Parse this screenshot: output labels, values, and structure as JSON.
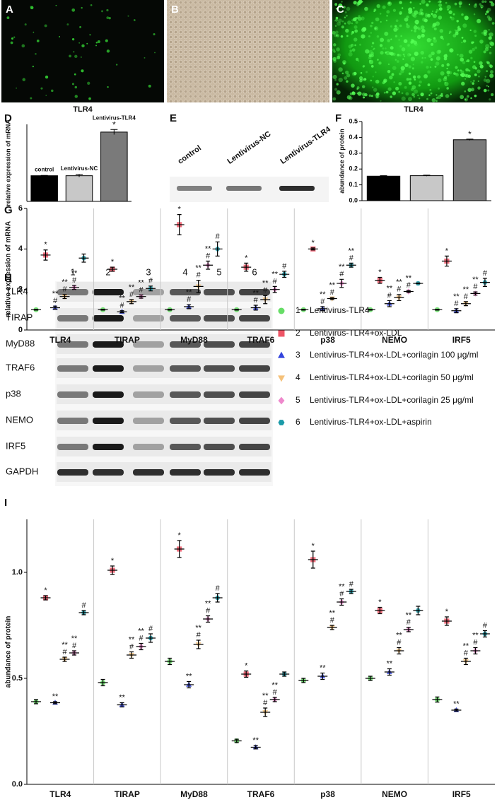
{
  "panels": {
    "letters": [
      "A",
      "B",
      "C",
      "D",
      "E",
      "F",
      "G",
      "H",
      "I"
    ],
    "image_captions": [
      "TLR4",
      "TLR4"
    ],
    "e_lanes": [
      "control",
      "Lentivirus-NC",
      "Lentivirus-TLR4"
    ],
    "h_lanes": [
      "1",
      "2",
      "3",
      "4",
      "5",
      "6"
    ],
    "h_rows": [
      "TLR4",
      "TIRAP",
      "MyD88",
      "TRAF6",
      "p38",
      "NEMO",
      "IRF5",
      "GAPDH"
    ]
  },
  "chart_data": [
    {
      "type": "bar",
      "y_label": "relative expression of mRNA",
      "categories": [
        "control",
        "Lentivirus-NC",
        "Lentivirus-TLR4"
      ],
      "values": [
        1.0,
        1.0,
        2.7
      ],
      "errors": [
        0.01,
        0.05,
        0.1
      ],
      "colors": [
        "#000000",
        "#c8c8c8",
        "#7a7a7a"
      ],
      "ylim": [
        0,
        3
      ],
      "annotations": [
        {
          "index": 2,
          "text": "*"
        }
      ]
    },
    {
      "type": "bar",
      "y_label": "abundance of protein",
      "categories": [
        null,
        null,
        null
      ],
      "values": [
        0.155,
        0.158,
        0.385
      ],
      "errors": [
        0.003,
        0.003,
        0.004
      ],
      "colors": [
        "#000000",
        "#c8c8c8",
        "#7a7a7a"
      ],
      "ylim": [
        0,
        0.5
      ],
      "yticks": [
        {
          "value": 0,
          "label": "0.0"
        },
        0.1,
        0.2,
        0.3,
        0.4,
        0.5
      ],
      "annotations": [
        {
          "index": 2,
          "text": "*"
        }
      ]
    },
    {
      "type": "dot",
      "y_label": "relative expression of mRNA",
      "categories": [
        "TLR4",
        "TIRAP",
        "MyD88",
        "TRAF6",
        "p38",
        "NEMO",
        "IRF5"
      ],
      "ylim": [
        0,
        6
      ],
      "yticks": [
        0,
        2,
        4,
        6
      ],
      "series": [
        {
          "number": "1",
          "name": "Lentivirus-TLR4",
          "color": "#66dd66",
          "marker": "circle",
          "values": [
            1,
            1,
            1,
            1,
            1,
            1,
            1
          ],
          "errors": [
            0.02,
            0.02,
            0.02,
            0.02,
            0.02,
            0.02,
            0.02
          ],
          "labels": [
            [],
            [],
            [],
            [],
            [],
            [],
            []
          ]
        },
        {
          "number": "2",
          "name": "Lentivirus-TLR4+ox-LDL",
          "color": "#ee5566",
          "marker": "square",
          "values": [
            3.7,
            3.0,
            5.2,
            3.1,
            4.0,
            2.45,
            3.4
          ],
          "errors": [
            0.25,
            0.1,
            0.5,
            0.2,
            0.05,
            0.15,
            0.25
          ],
          "labels": [
            [
              "*"
            ],
            [
              "*"
            ],
            [
              "*"
            ],
            [
              "*"
            ],
            [
              "*"
            ],
            [
              "*"
            ],
            [
              "*"
            ]
          ]
        },
        {
          "number": "3",
          "name": "Lentivirus-TLR4+ox-LDL+corilagin 100 μg/ml",
          "color": "#3344dd",
          "marker": "triangle",
          "values": [
            1.1,
            0.9,
            1.15,
            1.1,
            1.05,
            1.3,
            0.95
          ],
          "errors": [
            0.08,
            0.05,
            0.1,
            0.12,
            0.1,
            0.15,
            0.1
          ],
          "labels": [
            [
              "**",
              "#"
            ],
            [
              "**",
              "#"
            ],
            [
              "**",
              "#"
            ],
            [
              "**",
              "#"
            ],
            [
              "**",
              "#"
            ],
            [
              "**",
              "#"
            ],
            [
              "**",
              "#"
            ]
          ]
        },
        {
          "number": "4",
          "name": "Lentivirus-TLR4+ox-LDL+corilagin 50 μg/ml",
          "color": "#f5c17a",
          "marker": "triangle-down",
          "values": [
            1.65,
            1.4,
            2.15,
            1.5,
            1.55,
            1.6,
            1.3
          ],
          "errors": [
            0.1,
            0.1,
            0.3,
            0.2,
            0.05,
            0.15,
            0.1
          ],
          "labels": [
            [
              "**",
              "#"
            ],
            [
              "**",
              "#"
            ],
            [
              "**",
              "#"
            ],
            [
              "**",
              "#"
            ],
            [
              "**",
              "#"
            ],
            [
              "**",
              "#"
            ],
            [
              "**",
              "#"
            ]
          ]
        },
        {
          "number": "5",
          "name": "Lentivirus-TLR4+ox-LDL+corilagin 25 μg/ml",
          "color": "#ee88cc",
          "marker": "diamond",
          "values": [
            2.1,
            1.65,
            3.2,
            2.0,
            2.3,
            1.9,
            1.8
          ],
          "errors": [
            0.1,
            0.08,
            0.2,
            0.15,
            0.2,
            0.05,
            0.08
          ],
          "labels": [
            [
              "**",
              "#"
            ],
            [
              "**",
              "#"
            ],
            [
              "**",
              "#"
            ],
            [
              "**",
              "#"
            ],
            [
              "**",
              "#"
            ],
            [
              "**",
              "#"
            ],
            [
              "**",
              "#"
            ]
          ]
        },
        {
          "number": "6",
          "name": "Lentivirus-TLR4+ox-LDL+aspirin",
          "color": "#1a9aa8",
          "marker": "hexagon",
          "values": [
            3.55,
            2.05,
            4.0,
            2.75,
            3.2,
            2.3,
            2.35
          ],
          "errors": [
            0.2,
            0.12,
            0.35,
            0.15,
            0.1,
            0.02,
            0.2
          ],
          "labels": [
            [],
            [
              "#"
            ],
            [
              "#"
            ],
            [
              "#"
            ],
            [
              "**",
              "#"
            ],
            [],
            [
              "#"
            ]
          ]
        }
      ]
    },
    {
      "type": "dot",
      "y_label": "abundance of protein",
      "categories": [
        "TLR4",
        "TIRAP",
        "MyD88",
        "TRAF6",
        "p38",
        "NEMO",
        "IRF5"
      ],
      "ylim": [
        0,
        1.25
      ],
      "yticks": [
        {
          "value": 0,
          "label": "0.0"
        },
        0.5,
        {
          "value": 1,
          "label": "1.0"
        }
      ],
      "series": [
        {
          "number": "1",
          "name": "Lentivirus-TLR4",
          "color": "#66dd66",
          "marker": "circle",
          "values": [
            0.39,
            0.48,
            0.58,
            0.205,
            0.49,
            0.5,
            0.4
          ],
          "errors": [
            0.01,
            0.015,
            0.015,
            0.008,
            0.01,
            0.01,
            0.012
          ],
          "labels": [
            [],
            [],
            [],
            [],
            [],
            [],
            []
          ]
        },
        {
          "number": "2",
          "name": "Lentivirus-TLR4+ox-LDL",
          "color": "#ee5566",
          "marker": "square",
          "values": [
            0.88,
            1.01,
            1.11,
            0.52,
            1.06,
            0.82,
            0.77
          ],
          "errors": [
            0.01,
            0.02,
            0.04,
            0.015,
            0.04,
            0.015,
            0.02
          ],
          "labels": [
            [
              "*"
            ],
            [
              "*"
            ],
            [
              "*"
            ],
            [
              "*"
            ],
            [
              "*"
            ],
            [
              "*"
            ],
            [
              "*"
            ]
          ]
        },
        {
          "number": "3",
          "name": "Lentivirus-TLR4+ox-LDL+corilagin 100 μg/ml",
          "color": "#3344dd",
          "marker": "triangle",
          "values": [
            0.385,
            0.375,
            0.47,
            0.175,
            0.51,
            0.53,
            0.35
          ],
          "errors": [
            0.005,
            0.01,
            0.015,
            0.008,
            0.015,
            0.015,
            0.005
          ],
          "labels": [
            [
              "**"
            ],
            [
              "**"
            ],
            [
              "**"
            ],
            [
              "**"
            ],
            [
              "**"
            ],
            [
              "**"
            ],
            [
              "**"
            ]
          ]
        },
        {
          "number": "4",
          "name": "Lentivirus-TLR4+ox-LDL+corilagin 50 μg/ml",
          "color": "#f5c17a",
          "marker": "triangle-down",
          "values": [
            0.59,
            0.61,
            0.66,
            0.34,
            0.74,
            0.63,
            0.58
          ],
          "errors": [
            0.01,
            0.015,
            0.02,
            0.02,
            0.01,
            0.015,
            0.015
          ],
          "labels": [
            [
              "**",
              "#"
            ],
            [
              "**",
              "#"
            ],
            [
              "**",
              "#"
            ],
            [
              "**",
              "#"
            ],
            [
              "**",
              "#"
            ],
            [
              "**",
              "#"
            ],
            [
              "**",
              "#"
            ]
          ]
        },
        {
          "number": "5",
          "name": "Lentivirus-TLR4+ox-LDL+corilagin 25 μg/ml",
          "color": "#ee88cc",
          "marker": "diamond",
          "values": [
            0.62,
            0.65,
            0.78,
            0.4,
            0.86,
            0.73,
            0.63
          ],
          "errors": [
            0.01,
            0.015,
            0.015,
            0.01,
            0.015,
            0.01,
            0.015
          ],
          "labels": [
            [
              "**",
              "#"
            ],
            [
              "**",
              "#"
            ],
            [
              "**",
              "#"
            ],
            [
              "**",
              "#"
            ],
            [
              "**",
              "#"
            ],
            [
              "**",
              "#"
            ],
            [
              "**",
              "#"
            ]
          ]
        },
        {
          "number": "6",
          "name": "Lentivirus-TLR4+ox-LDL+aspirin",
          "color": "#1a9aa8",
          "marker": "hexagon",
          "values": [
            0.81,
            0.69,
            0.88,
            0.52,
            0.91,
            0.82,
            0.71
          ],
          "errors": [
            0.01,
            0.02,
            0.02,
            0.01,
            0.01,
            0.02,
            0.015
          ],
          "labels": [
            [
              "#"
            ],
            [
              "#"
            ],
            [
              "#"
            ],
            [],
            [
              "#"
            ],
            [],
            [
              "#"
            ]
          ]
        }
      ]
    }
  ]
}
